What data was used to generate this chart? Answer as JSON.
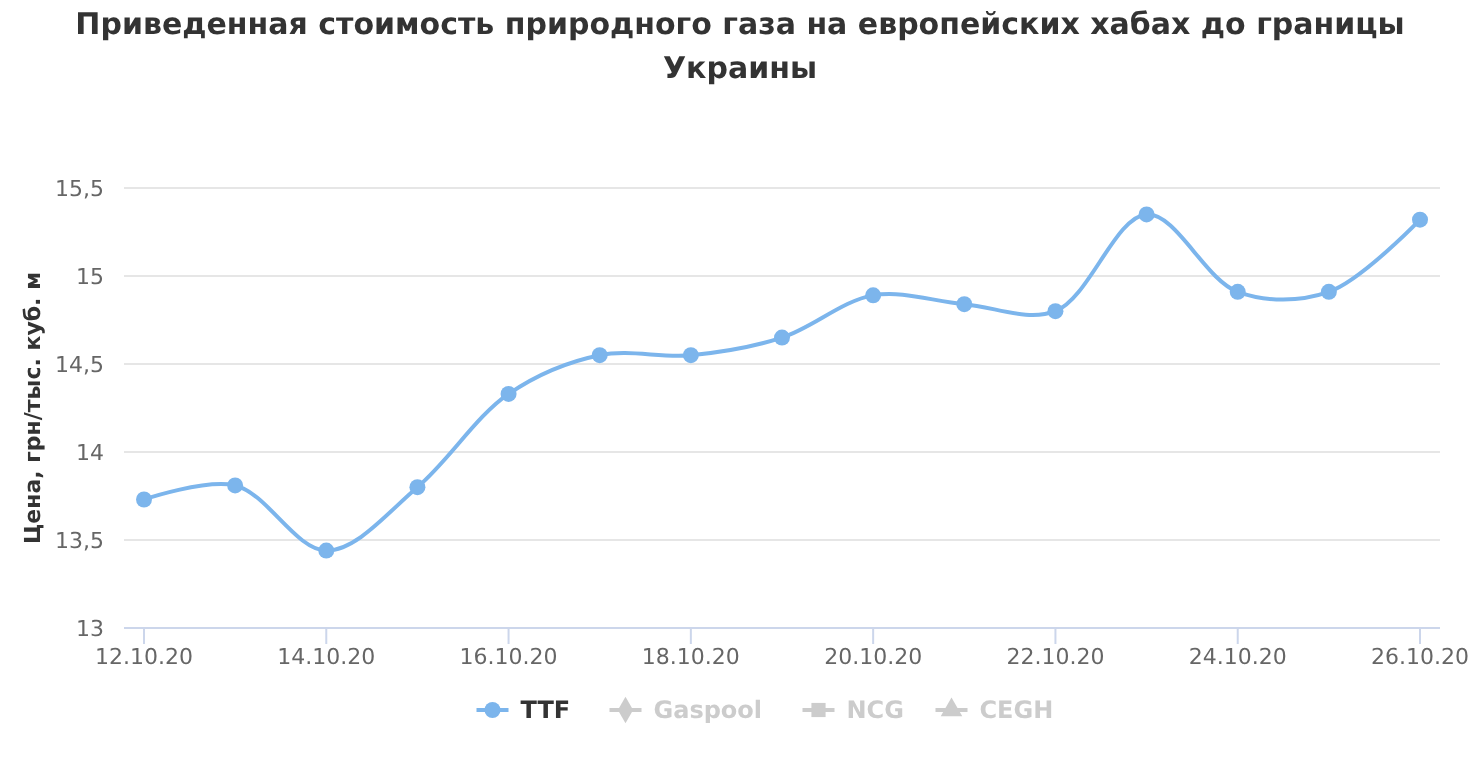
{
  "chart_data": {
    "type": "line",
    "title": "Приведенная стоимость природного газа на европейских хабах до границы Украины",
    "ylabel": "Цена, грн/тыс. куб. м",
    "categories": [
      "12.10.20",
      null,
      "14.10.20",
      null,
      "16.10.20",
      null,
      "18.10.20",
      null,
      "20.10.20",
      null,
      "22.10.20",
      null,
      "24.10.20",
      null,
      "26.10.20"
    ],
    "series": [
      {
        "name": "TTF",
        "color": "#7cb5ec",
        "marker": "circle",
        "values": [
          13.73,
          13.81,
          13.44,
          13.8,
          14.33,
          14.55,
          14.55,
          14.65,
          14.89,
          14.84,
          14.8,
          15.35,
          14.91,
          14.91,
          15.32
        ]
      },
      {
        "name": "Gaspool",
        "color": "#cccccc",
        "marker": "diamond",
        "values": [
          null,
          null,
          null,
          null,
          null,
          null,
          null,
          null,
          null,
          null,
          null,
          null,
          null,
          null,
          null
        ]
      },
      {
        "name": "NCG",
        "color": "#cccccc",
        "marker": "square",
        "values": [
          null,
          null,
          null,
          null,
          null,
          null,
          null,
          null,
          null,
          null,
          null,
          null,
          null,
          null,
          null
        ]
      },
      {
        "name": "CEGH",
        "color": "#cccccc",
        "marker": "triangle",
        "values": [
          null,
          null,
          null,
          null,
          null,
          null,
          null,
          null,
          null,
          null,
          null,
          null,
          null,
          null,
          null
        ]
      }
    ],
    "ylim": [
      13,
      15.5
    ],
    "yticks": [
      13,
      {
        "value": 13.5,
        "label": "13,5"
      },
      14,
      {
        "value": 14.5,
        "label": "14,5"
      },
      15,
      {
        "value": 15.5,
        "label": "15,5"
      }
    ],
    "grid": "y",
    "legend": "bottom"
  }
}
